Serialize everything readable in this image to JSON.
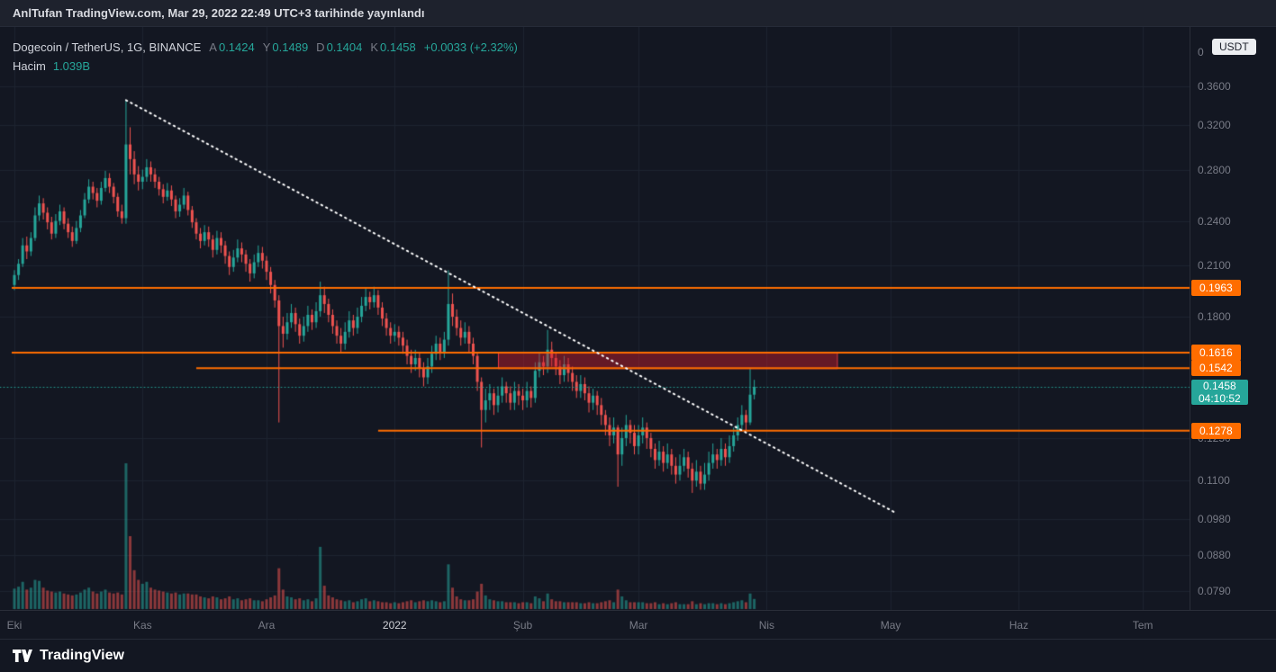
{
  "publish_bar": {
    "text": "AnlTufan TradingView.com, Mar 29, 2022 22:49 UTC+3 tarihinde yayınlandı"
  },
  "legend": {
    "symbol": "Dogecoin / TetherUS, 1G, BINANCE",
    "ohlc": [
      {
        "key": "A",
        "value": "0.1424"
      },
      {
        "key": "Y",
        "value": "0.1489"
      },
      {
        "key": "D",
        "value": "0.1404"
      },
      {
        "key": "K",
        "value": "0.1458"
      }
    ],
    "change": "+0.0033 (+2.32%)",
    "volume_label": "Hacim",
    "volume_value": "1.039B"
  },
  "price_axis": {
    "currency": "USDT"
  },
  "footer": {
    "brand": "TradingView"
  },
  "chart_data": {
    "type": "candlestick",
    "title": "Dogecoin / TetherUS, 1G, BINANCE",
    "scale": "log",
    "start_date": "2021-10-01",
    "interval": "1D",
    "volume_unit": "B",
    "colors": {
      "up": "#26a69a",
      "down": "#ef5350",
      "vol_up": "rgba(38,166,154,0.55)",
      "vol_down": "rgba(239,83,80,0.55)",
      "level": "#ff6d00",
      "zone_fill": "rgba(204,28,45,0.45)",
      "zone_border": "#f23645",
      "trendline": "#ffffff",
      "last_price": "#26a69a",
      "grid": "#1e2431"
    },
    "y_ticks": [
      {
        "label": "0",
        "price": 0.398,
        "grid": false
      },
      {
        "label": "0.3600",
        "price": 0.36
      },
      {
        "label": "0.3200",
        "price": 0.32
      },
      {
        "label": "0.2800",
        "price": 0.28
      },
      {
        "label": "0.2400",
        "price": 0.24
      },
      {
        "label": "0.2100",
        "price": 0.21
      },
      {
        "label": "0.1800",
        "price": 0.18
      },
      {
        "label": "0.1250",
        "price": 0.125
      },
      {
        "label": "0.1100",
        "price": 0.11
      },
      {
        "label": "0.0980",
        "price": 0.098
      },
      {
        "label": "0.0880",
        "price": 0.088
      },
      {
        "label": "0.0790",
        "price": 0.079
      }
    ],
    "x_ticks": [
      {
        "label": "Eki",
        "day": 0
      },
      {
        "label": "Kas",
        "day": 31
      },
      {
        "label": "Ara",
        "day": 61
      },
      {
        "label": "2022",
        "day": 92,
        "emphasis": true
      },
      {
        "label": "Şub",
        "day": 123
      },
      {
        "label": "Mar",
        "day": 151
      },
      {
        "label": "Nis",
        "day": 182
      },
      {
        "label": "May",
        "day": 212
      },
      {
        "label": "Haz",
        "day": 243
      },
      {
        "label": "Tem",
        "day": 273
      }
    ],
    "levels": [
      {
        "price": 0.1963,
        "label": "0.1963",
        "start_day": 0
      },
      {
        "price": 0.1616,
        "label": "0.1616",
        "start_day": 0
      },
      {
        "price": 0.1542,
        "label": "0.1542",
        "start_day": 44
      },
      {
        "price": 0.1278,
        "label": "0.1278",
        "start_day": 88
      }
    ],
    "zone": {
      "price_top": 0.1616,
      "price_bottom": 0.1542,
      "day_start": 117,
      "day_end": 199
    },
    "trendline": {
      "day_start": 27,
      "price_start": 0.345,
      "day_end": 213,
      "price_end": 0.1
    },
    "last_price": {
      "price": 0.1458,
      "value": "0.1458",
      "countdown": "04:10:52"
    },
    "candles": [
      [
        0.198,
        0.207,
        0.195,
        0.204,
        2.1
      ],
      [
        0.204,
        0.214,
        0.201,
        0.211,
        2.3
      ],
      [
        0.211,
        0.228,
        0.209,
        0.223,
        2.8
      ],
      [
        0.223,
        0.229,
        0.214,
        0.219,
        2.0
      ],
      [
        0.219,
        0.232,
        0.216,
        0.228,
        2.2
      ],
      [
        0.228,
        0.25,
        0.226,
        0.244,
        3.0
      ],
      [
        0.244,
        0.259,
        0.24,
        0.253,
        2.9
      ],
      [
        0.253,
        0.257,
        0.241,
        0.246,
        2.2
      ],
      [
        0.246,
        0.25,
        0.234,
        0.239,
        1.9
      ],
      [
        0.239,
        0.243,
        0.227,
        0.231,
        1.8
      ],
      [
        0.231,
        0.245,
        0.228,
        0.24,
        1.7
      ],
      [
        0.24,
        0.252,
        0.237,
        0.247,
        1.8
      ],
      [
        0.247,
        0.25,
        0.234,
        0.238,
        1.6
      ],
      [
        0.238,
        0.242,
        0.228,
        0.232,
        1.5
      ],
      [
        0.232,
        0.236,
        0.222,
        0.226,
        1.4
      ],
      [
        0.226,
        0.24,
        0.224,
        0.235,
        1.5
      ],
      [
        0.235,
        0.248,
        0.232,
        0.244,
        1.7
      ],
      [
        0.244,
        0.261,
        0.242,
        0.256,
        2.0
      ],
      [
        0.256,
        0.272,
        0.253,
        0.266,
        2.2
      ],
      [
        0.266,
        0.27,
        0.256,
        0.261,
        1.8
      ],
      [
        0.261,
        0.265,
        0.25,
        0.255,
        1.6
      ],
      [
        0.255,
        0.27,
        0.252,
        0.265,
        1.8
      ],
      [
        0.265,
        0.279,
        0.262,
        0.273,
        2.0
      ],
      [
        0.273,
        0.277,
        0.261,
        0.266,
        1.7
      ],
      [
        0.266,
        0.269,
        0.253,
        0.258,
        1.6
      ],
      [
        0.258,
        0.261,
        0.243,
        0.247,
        1.7
      ],
      [
        0.247,
        0.252,
        0.238,
        0.242,
        1.5
      ],
      [
        0.242,
        0.345,
        0.238,
        0.302,
        15.0
      ],
      [
        0.302,
        0.318,
        0.276,
        0.289,
        7.5
      ],
      [
        0.289,
        0.296,
        0.268,
        0.276,
        4.0
      ],
      [
        0.276,
        0.283,
        0.263,
        0.27,
        3.0
      ],
      [
        0.27,
        0.28,
        0.264,
        0.274,
        2.6
      ],
      [
        0.274,
        0.289,
        0.27,
        0.282,
        2.8
      ],
      [
        0.282,
        0.287,
        0.27,
        0.276,
        2.2
      ],
      [
        0.276,
        0.281,
        0.265,
        0.27,
        2.0
      ],
      [
        0.27,
        0.274,
        0.259,
        0.264,
        1.9
      ],
      [
        0.264,
        0.268,
        0.253,
        0.258,
        1.8
      ],
      [
        0.258,
        0.269,
        0.255,
        0.263,
        1.7
      ],
      [
        0.263,
        0.267,
        0.251,
        0.256,
        1.6
      ],
      [
        0.256,
        0.259,
        0.242,
        0.247,
        1.7
      ],
      [
        0.247,
        0.257,
        0.243,
        0.252,
        1.5
      ],
      [
        0.252,
        0.265,
        0.249,
        0.259,
        1.6
      ],
      [
        0.259,
        0.262,
        0.244,
        0.248,
        1.6
      ],
      [
        0.248,
        0.251,
        0.235,
        0.239,
        1.5
      ],
      [
        0.239,
        0.242,
        0.227,
        0.231,
        1.5
      ],
      [
        0.231,
        0.235,
        0.221,
        0.226,
        1.3
      ],
      [
        0.226,
        0.237,
        0.223,
        0.232,
        1.2
      ],
      [
        0.232,
        0.236,
        0.222,
        0.227,
        1.1
      ],
      [
        0.227,
        0.23,
        0.215,
        0.22,
        1.3
      ],
      [
        0.22,
        0.233,
        0.217,
        0.228,
        1.2
      ],
      [
        0.228,
        0.232,
        0.218,
        0.223,
        1.0
      ],
      [
        0.223,
        0.226,
        0.211,
        0.216,
        1.1
      ],
      [
        0.216,
        0.219,
        0.204,
        0.209,
        1.3
      ],
      [
        0.209,
        0.22,
        0.206,
        0.215,
        1.0
      ],
      [
        0.215,
        0.227,
        0.212,
        0.221,
        1.1
      ],
      [
        0.221,
        0.225,
        0.212,
        0.217,
        0.9
      ],
      [
        0.217,
        0.22,
        0.206,
        0.211,
        1.0
      ],
      [
        0.211,
        0.214,
        0.2,
        0.205,
        1.1
      ],
      [
        0.205,
        0.217,
        0.202,
        0.212,
        0.9
      ],
      [
        0.212,
        0.223,
        0.209,
        0.218,
        0.9
      ],
      [
        0.218,
        0.222,
        0.208,
        0.213,
        0.8
      ],
      [
        0.213,
        0.216,
        0.201,
        0.206,
        1.0
      ],
      [
        0.206,
        0.209,
        0.193,
        0.198,
        1.2
      ],
      [
        0.198,
        0.201,
        0.185,
        0.189,
        1.4
      ],
      [
        0.189,
        0.192,
        0.131,
        0.175,
        4.2
      ],
      [
        0.175,
        0.18,
        0.164,
        0.171,
        2.0
      ],
      [
        0.171,
        0.182,
        0.168,
        0.177,
        1.3
      ],
      [
        0.177,
        0.187,
        0.174,
        0.182,
        1.2
      ],
      [
        0.182,
        0.185,
        0.172,
        0.176,
        1.0
      ],
      [
        0.176,
        0.179,
        0.166,
        0.17,
        1.1
      ],
      [
        0.17,
        0.18,
        0.167,
        0.175,
        0.9
      ],
      [
        0.175,
        0.186,
        0.172,
        0.181,
        1.0
      ],
      [
        0.181,
        0.184,
        0.173,
        0.177,
        0.8
      ],
      [
        0.177,
        0.188,
        0.174,
        0.183,
        1.1
      ],
      [
        0.183,
        0.2,
        0.18,
        0.192,
        6.4
      ],
      [
        0.192,
        0.197,
        0.182,
        0.187,
        2.4
      ],
      [
        0.187,
        0.19,
        0.177,
        0.181,
        1.4
      ],
      [
        0.181,
        0.184,
        0.171,
        0.175,
        1.2
      ],
      [
        0.175,
        0.178,
        0.166,
        0.17,
        1.0
      ],
      [
        0.17,
        0.174,
        0.162,
        0.166,
        0.9
      ],
      [
        0.166,
        0.177,
        0.163,
        0.172,
        0.8
      ],
      [
        0.172,
        0.183,
        0.169,
        0.178,
        0.9
      ],
      [
        0.178,
        0.181,
        0.17,
        0.174,
        0.7
      ],
      [
        0.174,
        0.185,
        0.171,
        0.18,
        0.8
      ],
      [
        0.18,
        0.191,
        0.177,
        0.186,
        1.0
      ],
      [
        0.186,
        0.196,
        0.183,
        0.191,
        1.1
      ],
      [
        0.191,
        0.194,
        0.184,
        0.188,
        0.8
      ],
      [
        0.188,
        0.197,
        0.185,
        0.192,
        0.9
      ],
      [
        0.192,
        0.195,
        0.181,
        0.185,
        0.8
      ],
      [
        0.185,
        0.188,
        0.175,
        0.179,
        0.7
      ],
      [
        0.179,
        0.182,
        0.17,
        0.174,
        0.7
      ],
      [
        0.174,
        0.177,
        0.166,
        0.17,
        0.6
      ],
      [
        0.17,
        0.176,
        0.167,
        0.172,
        0.7
      ],
      [
        0.172,
        0.175,
        0.165,
        0.169,
        0.6
      ],
      [
        0.169,
        0.172,
        0.161,
        0.165,
        0.7
      ],
      [
        0.165,
        0.168,
        0.156,
        0.16,
        0.8
      ],
      [
        0.16,
        0.163,
        0.152,
        0.156,
        0.9
      ],
      [
        0.156,
        0.163,
        0.153,
        0.159,
        0.7
      ],
      [
        0.159,
        0.162,
        0.15,
        0.154,
        0.8
      ],
      [
        0.154,
        0.157,
        0.146,
        0.15,
        0.9
      ],
      [
        0.15,
        0.159,
        0.147,
        0.155,
        0.8
      ],
      [
        0.155,
        0.165,
        0.152,
        0.161,
        0.9
      ],
      [
        0.161,
        0.17,
        0.158,
        0.166,
        0.8
      ],
      [
        0.166,
        0.169,
        0.158,
        0.162,
        0.7
      ],
      [
        0.162,
        0.172,
        0.159,
        0.168,
        0.8
      ],
      [
        0.168,
        0.207,
        0.165,
        0.187,
        4.6
      ],
      [
        0.187,
        0.193,
        0.175,
        0.18,
        2.2
      ],
      [
        0.18,
        0.184,
        0.17,
        0.174,
        1.3
      ],
      [
        0.174,
        0.178,
        0.165,
        0.169,
        1.0
      ],
      [
        0.169,
        0.177,
        0.166,
        0.172,
        0.9
      ],
      [
        0.172,
        0.175,
        0.162,
        0.166,
        0.9
      ],
      [
        0.166,
        0.169,
        0.156,
        0.16,
        1.0
      ],
      [
        0.16,
        0.162,
        0.144,
        0.148,
        1.8
      ],
      [
        0.148,
        0.15,
        0.1215,
        0.136,
        2.6
      ],
      [
        0.136,
        0.145,
        0.131,
        0.14,
        1.4
      ],
      [
        0.14,
        0.147,
        0.136,
        0.143,
        1.0
      ],
      [
        0.143,
        0.145,
        0.134,
        0.138,
        0.9
      ],
      [
        0.138,
        0.146,
        0.135,
        0.142,
        0.8
      ],
      [
        0.142,
        0.15,
        0.139,
        0.146,
        0.8
      ],
      [
        0.146,
        0.148,
        0.139,
        0.143,
        0.7
      ],
      [
        0.143,
        0.146,
        0.136,
        0.139,
        0.7
      ],
      [
        0.139,
        0.148,
        0.136,
        0.144,
        0.7
      ],
      [
        0.144,
        0.147,
        0.138,
        0.142,
        0.6
      ],
      [
        0.142,
        0.145,
        0.136,
        0.14,
        0.7
      ],
      [
        0.14,
        0.148,
        0.137,
        0.144,
        0.7
      ],
      [
        0.144,
        0.146,
        0.137,
        0.141,
        0.6
      ],
      [
        0.141,
        0.157,
        0.139,
        0.153,
        1.3
      ],
      [
        0.153,
        0.162,
        0.15,
        0.157,
        1.1
      ],
      [
        0.157,
        0.16,
        0.151,
        0.155,
        0.8
      ],
      [
        0.155,
        0.173,
        0.152,
        0.163,
        1.6
      ],
      [
        0.163,
        0.167,
        0.155,
        0.159,
        1.0
      ],
      [
        0.159,
        0.162,
        0.151,
        0.155,
        0.8
      ],
      [
        0.155,
        0.158,
        0.147,
        0.151,
        0.8
      ],
      [
        0.151,
        0.16,
        0.148,
        0.156,
        0.7
      ],
      [
        0.156,
        0.159,
        0.148,
        0.152,
        0.7
      ],
      [
        0.152,
        0.155,
        0.144,
        0.148,
        0.7
      ],
      [
        0.148,
        0.151,
        0.141,
        0.144,
        0.7
      ],
      [
        0.144,
        0.151,
        0.141,
        0.147,
        0.6
      ],
      [
        0.147,
        0.15,
        0.14,
        0.143,
        0.6
      ],
      [
        0.143,
        0.146,
        0.135,
        0.139,
        0.7
      ],
      [
        0.139,
        0.145,
        0.136,
        0.142,
        0.6
      ],
      [
        0.142,
        0.144,
        0.134,
        0.138,
        0.6
      ],
      [
        0.138,
        0.141,
        0.13,
        0.134,
        0.7
      ],
      [
        0.134,
        0.136,
        0.126,
        0.13,
        0.8
      ],
      [
        0.13,
        0.133,
        0.122,
        0.126,
        0.9
      ],
      [
        0.126,
        0.133,
        0.123,
        0.129,
        0.7
      ],
      [
        0.129,
        0.13,
        0.108,
        0.119,
        2.0
      ],
      [
        0.119,
        0.129,
        0.115,
        0.125,
        1.3
      ],
      [
        0.125,
        0.134,
        0.122,
        0.13,
        0.9
      ],
      [
        0.13,
        0.132,
        0.123,
        0.127,
        0.7
      ],
      [
        0.127,
        0.13,
        0.119,
        0.122,
        0.7
      ],
      [
        0.122,
        0.13,
        0.119,
        0.126,
        0.7
      ],
      [
        0.126,
        0.133,
        0.123,
        0.129,
        0.7
      ],
      [
        0.129,
        0.131,
        0.121,
        0.125,
        0.6
      ],
      [
        0.125,
        0.127,
        0.118,
        0.121,
        0.6
      ],
      [
        0.121,
        0.123,
        0.114,
        0.117,
        0.7
      ],
      [
        0.117,
        0.124,
        0.115,
        0.12,
        0.5
      ],
      [
        0.12,
        0.122,
        0.113,
        0.116,
        0.6
      ],
      [
        0.116,
        0.123,
        0.114,
        0.119,
        0.5
      ],
      [
        0.119,
        0.121,
        0.112,
        0.115,
        0.6
      ],
      [
        0.115,
        0.118,
        0.109,
        0.112,
        0.7
      ],
      [
        0.112,
        0.119,
        0.11,
        0.115,
        0.5
      ],
      [
        0.115,
        0.121,
        0.113,
        0.118,
        0.5
      ],
      [
        0.118,
        0.12,
        0.111,
        0.114,
        0.5
      ],
      [
        0.114,
        0.116,
        0.106,
        0.11,
        0.8
      ],
      [
        0.11,
        0.117,
        0.108,
        0.113,
        0.5
      ],
      [
        0.113,
        0.115,
        0.107,
        0.109,
        0.6
      ],
      [
        0.109,
        0.116,
        0.107,
        0.112,
        0.5
      ],
      [
        0.112,
        0.12,
        0.11,
        0.116,
        0.6
      ],
      [
        0.116,
        0.123,
        0.114,
        0.119,
        0.6
      ],
      [
        0.119,
        0.121,
        0.114,
        0.117,
        0.5
      ],
      [
        0.117,
        0.125,
        0.115,
        0.121,
        0.6
      ],
      [
        0.121,
        0.123,
        0.115,
        0.118,
        0.5
      ],
      [
        0.118,
        0.126,
        0.116,
        0.122,
        0.6
      ],
      [
        0.122,
        0.129,
        0.12,
        0.126,
        0.7
      ],
      [
        0.126,
        0.133,
        0.124,
        0.13,
        0.8
      ],
      [
        0.13,
        0.138,
        0.128,
        0.134,
        0.9
      ],
      [
        0.134,
        0.136,
        0.128,
        0.131,
        0.7
      ],
      [
        0.131,
        0.154,
        0.13,
        0.1424,
        1.6
      ],
      [
        0.1424,
        0.1489,
        0.1404,
        0.1458,
        1.039
      ]
    ]
  }
}
